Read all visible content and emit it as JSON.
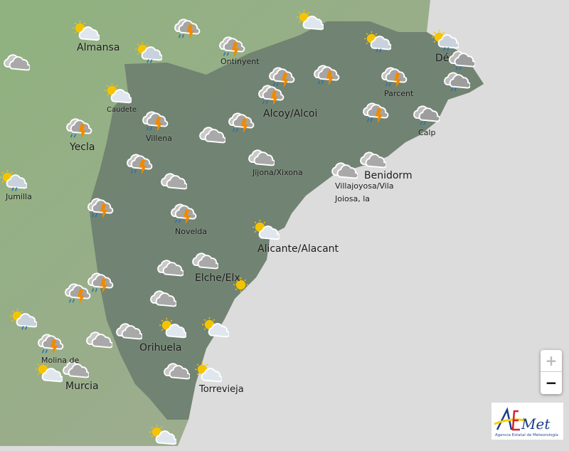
{
  "map": {
    "labels": {
      "almansa": "Almansa",
      "ontinyent": "Ontinyent",
      "caudete": "Caudete",
      "alcoy": "Alcoy/Alcoi",
      "parcent": "Parcent",
      "denia": "Dé",
      "villena": "Villena",
      "yecla": "Yecla",
      "calp": "Calp",
      "jijona": "Jijona/Xixona",
      "benidorm": "Benidorm",
      "villajoyosa1": "Villajoyosa/Vila",
      "villajoyosa2": "Joiosa, la",
      "jumilla": "Jumilla",
      "novelda": "Novelda",
      "alicante": "Alicante/Alacant",
      "elche": "Elche/Elx",
      "orihuela": "Orihuela",
      "molina": "Molina de",
      "murcia": "Murcia",
      "torrevieja": "Torrevieja"
    },
    "weather_icons": [
      "sun-cloud",
      "storm",
      "sun-cloud",
      "overcast",
      "sun-cloud-rain",
      "storm",
      "sun-cloud-rain",
      "sun-cloud-rain",
      "cloud-rain",
      "storm",
      "storm",
      "storm",
      "cloud-rain",
      "sun-cloud",
      "storm",
      "storm",
      "storm",
      "overcast",
      "storm",
      "storm",
      "cloud-rain",
      "overcast",
      "overcast",
      "sun-cloud-rain",
      "storm",
      "overcast",
      "overcast",
      "storm",
      "storm",
      "sun-cloud",
      "overcast",
      "overcast",
      "storm",
      "storm",
      "sun",
      "overcast",
      "sun-cloud-rain",
      "sun-cloud",
      "sun-cloud",
      "overcast",
      "overcast",
      "storm",
      "overcast",
      "sun-cloud",
      "overcast",
      "sun-cloud",
      "sun-cloud"
    ],
    "colors": {
      "sea": "#dcdcdc",
      "land": "#8fae82",
      "province": "#6e7f70",
      "sun": "#f5c400",
      "lightning": "#f08a00",
      "rain": "#2a6fb0"
    }
  },
  "controls": {
    "zoom_in": "+",
    "zoom_out": "−"
  },
  "logo": {
    "name": "AEMet",
    "subtitle": "Agencia Estatal de Meteorología"
  }
}
